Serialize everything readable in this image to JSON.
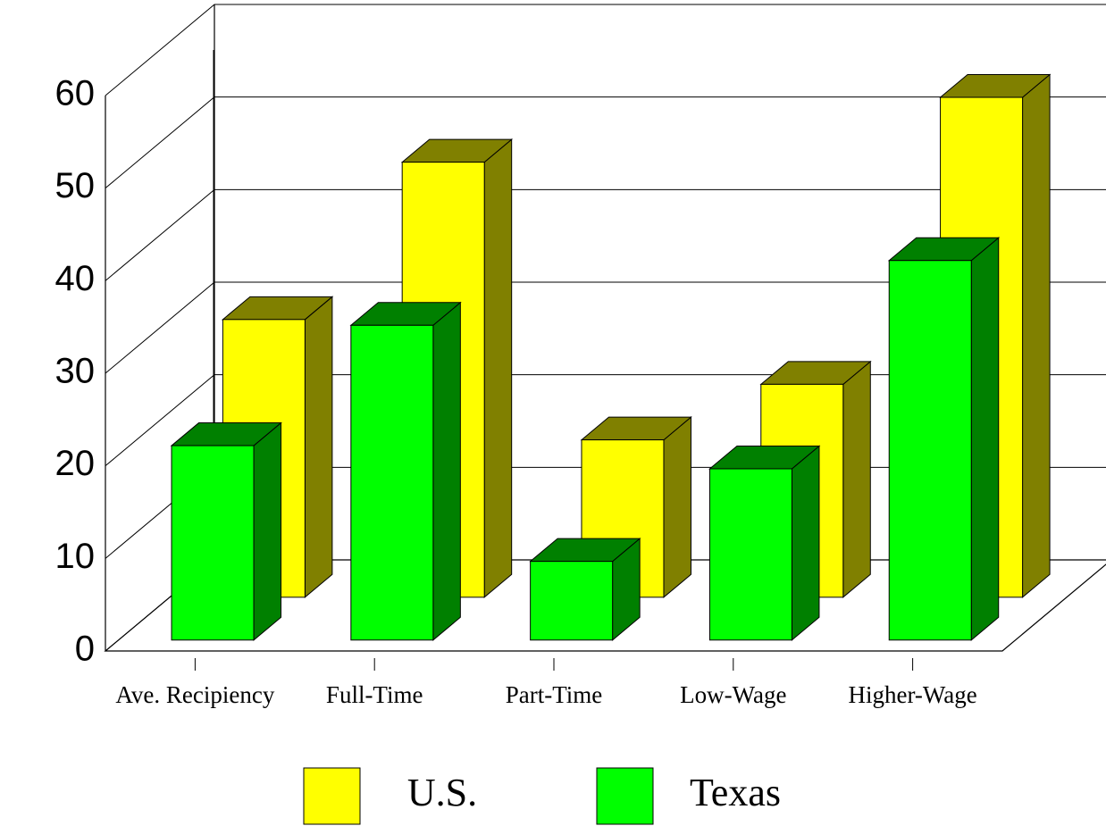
{
  "chart_data": {
    "type": "bar3d",
    "categories": [
      "Ave. Recipiency",
      "Full-Time",
      "Part-Time",
      "Low-Wage",
      "Higher-Wage"
    ],
    "series": [
      {
        "name": "U.S.",
        "color": "#ffff00",
        "side_color": "#808000",
        "values": [
          30,
          47,
          17,
          23,
          54
        ]
      },
      {
        "name": "Texas",
        "color": "#00ff00",
        "side_color": "#008000",
        "values": [
          21,
          34,
          8.5,
          18.5,
          41
        ]
      }
    ],
    "ylim": [
      0,
      60
    ],
    "yticks": [
      0,
      10,
      20,
      30,
      40,
      50,
      60
    ],
    "grid": true
  }
}
